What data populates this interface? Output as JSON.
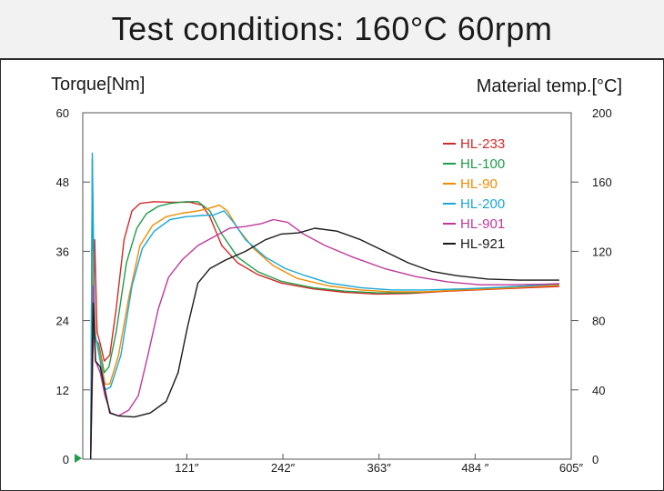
{
  "header": {
    "title": "Test conditions: 160°C 60rpm"
  },
  "chart_data": {
    "type": "line",
    "title": "Test conditions: 160°C 60rpm",
    "ylabel": "Torque[Nm]",
    "y2label": "Material temp.[°C]",
    "xlabel": "",
    "xlim": [
      -10,
      605
    ],
    "ylim": [
      0,
      60
    ],
    "y2lim": [
      0,
      200
    ],
    "x_ticks": [
      {
        "value": 121,
        "label": "121″"
      },
      {
        "value": 242,
        "label": "242″"
      },
      {
        "value": 363,
        "label": "363″"
      },
      {
        "value": 484,
        "label": "484 ″"
      },
      {
        "value": 605,
        "label": "605″"
      }
    ],
    "y_ticks": [
      0,
      12,
      24,
      36,
      48,
      60
    ],
    "y2_ticks": [
      0,
      40,
      80,
      120,
      160,
      200
    ],
    "legend_position": "top-right",
    "series": [
      {
        "name": "HL-233",
        "color": "#d62828",
        "points": [
          [
            0,
            0
          ],
          [
            3,
            20
          ],
          [
            5,
            38
          ],
          [
            8,
            22
          ],
          [
            12,
            20
          ],
          [
            17,
            17
          ],
          [
            24,
            18
          ],
          [
            32,
            26
          ],
          [
            42,
            38
          ],
          [
            52,
            43
          ],
          [
            62,
            44.3
          ],
          [
            80,
            44.6
          ],
          [
            100,
            44.5
          ],
          [
            125,
            44.5
          ],
          [
            140,
            44
          ],
          [
            150,
            42
          ],
          [
            165,
            37
          ],
          [
            185,
            34
          ],
          [
            210,
            32
          ],
          [
            240,
            30.5
          ],
          [
            280,
            29.5
          ],
          [
            320,
            28.9
          ],
          [
            360,
            28.6
          ],
          [
            400,
            28.7
          ],
          [
            450,
            29.1
          ],
          [
            500,
            29.4
          ],
          [
            550,
            29.7
          ],
          [
            590,
            29.9
          ]
        ]
      },
      {
        "name": "HL-100",
        "color": "#1f9d4a",
        "points": [
          [
            0,
            0
          ],
          [
            2,
            52
          ],
          [
            4,
            21
          ],
          [
            10,
            20
          ],
          [
            17,
            15
          ],
          [
            23,
            16
          ],
          [
            32,
            22
          ],
          [
            45,
            34
          ],
          [
            58,
            40
          ],
          [
            70,
            42.5
          ],
          [
            85,
            43.8
          ],
          [
            100,
            44.3
          ],
          [
            120,
            44.6
          ],
          [
            135,
            44.6
          ],
          [
            150,
            43
          ],
          [
            165,
            39
          ],
          [
            185,
            35
          ],
          [
            210,
            32.5
          ],
          [
            240,
            30.8
          ],
          [
            280,
            29.7
          ],
          [
            320,
            29.1
          ],
          [
            360,
            28.8
          ],
          [
            400,
            28.8
          ],
          [
            450,
            29.2
          ],
          [
            500,
            29.6
          ],
          [
            550,
            30
          ],
          [
            590,
            30.3
          ]
        ]
      },
      {
        "name": "HL-90",
        "color": "#f08c00",
        "points": [
          [
            0,
            0
          ],
          [
            3,
            36
          ],
          [
            6,
            21
          ],
          [
            12,
            18
          ],
          [
            18,
            13
          ],
          [
            24,
            13
          ],
          [
            35,
            18
          ],
          [
            48,
            28
          ],
          [
            62,
            37
          ],
          [
            78,
            40.5
          ],
          [
            95,
            42
          ],
          [
            115,
            42.6
          ],
          [
            135,
            43
          ],
          [
            150,
            43.5
          ],
          [
            162,
            44
          ],
          [
            172,
            43
          ],
          [
            185,
            40
          ],
          [
            205,
            36.5
          ],
          [
            230,
            33.5
          ],
          [
            260,
            31.3
          ],
          [
            300,
            30
          ],
          [
            340,
            29.3
          ],
          [
            380,
            29
          ],
          [
            420,
            29
          ],
          [
            470,
            29.3
          ],
          [
            520,
            29.6
          ],
          [
            560,
            29.9
          ],
          [
            590,
            30.1
          ]
        ]
      },
      {
        "name": "HL-200",
        "color": "#1aa7d8",
        "points": [
          [
            0,
            0
          ],
          [
            2,
            53
          ],
          [
            5,
            22
          ],
          [
            12,
            17
          ],
          [
            18,
            12
          ],
          [
            25,
            12.5
          ],
          [
            38,
            18
          ],
          [
            52,
            30
          ],
          [
            65,
            36.5
          ],
          [
            80,
            39.5
          ],
          [
            100,
            41.5
          ],
          [
            120,
            42
          ],
          [
            140,
            42.2
          ],
          [
            155,
            42.3
          ],
          [
            168,
            43
          ],
          [
            180,
            41
          ],
          [
            195,
            38
          ],
          [
            220,
            35
          ],
          [
            245,
            33
          ],
          [
            270,
            31.8
          ],
          [
            300,
            30.5
          ],
          [
            340,
            29.7
          ],
          [
            380,
            29.3
          ],
          [
            420,
            29.3
          ],
          [
            470,
            29.5
          ],
          [
            520,
            29.8
          ],
          [
            560,
            30.1
          ],
          [
            590,
            30.4
          ]
        ]
      },
      {
        "name": "HL-901",
        "color": "#c0399a",
        "points": [
          [
            0,
            0
          ],
          [
            3,
            30
          ],
          [
            6,
            17
          ],
          [
            12,
            15
          ],
          [
            18,
            11
          ],
          [
            25,
            8
          ],
          [
            35,
            7.5
          ],
          [
            48,
            8.5
          ],
          [
            60,
            11
          ],
          [
            72,
            18
          ],
          [
            85,
            26
          ],
          [
            98,
            31.5
          ],
          [
            115,
            34.5
          ],
          [
            135,
            37
          ],
          [
            155,
            38.5
          ],
          [
            175,
            40
          ],
          [
            195,
            40.3
          ],
          [
            215,
            40.8
          ],
          [
            230,
            41.5
          ],
          [
            248,
            41
          ],
          [
            268,
            39
          ],
          [
            295,
            37
          ],
          [
            330,
            35
          ],
          [
            370,
            33
          ],
          [
            410,
            31.6
          ],
          [
            450,
            30.7
          ],
          [
            490,
            30.2
          ],
          [
            530,
            30.2
          ],
          [
            570,
            30.3
          ],
          [
            590,
            30.4
          ]
        ]
      },
      {
        "name": "HL-921",
        "color": "#1a1a1a",
        "points": [
          [
            0,
            0
          ],
          [
            3,
            27
          ],
          [
            6,
            17
          ],
          [
            12,
            16
          ],
          [
            18,
            12
          ],
          [
            24,
            8
          ],
          [
            35,
            7.5
          ],
          [
            55,
            7.3
          ],
          [
            75,
            8
          ],
          [
            95,
            10
          ],
          [
            110,
            15
          ],
          [
            122,
            23
          ],
          [
            135,
            30.5
          ],
          [
            150,
            33
          ],
          [
            170,
            34.5
          ],
          [
            195,
            36
          ],
          [
            220,
            38
          ],
          [
            240,
            39
          ],
          [
            262,
            39.2
          ],
          [
            282,
            40
          ],
          [
            310,
            39.5
          ],
          [
            340,
            38
          ],
          [
            370,
            36
          ],
          [
            400,
            34
          ],
          [
            430,
            32.5
          ],
          [
            460,
            31.8
          ],
          [
            500,
            31.2
          ],
          [
            540,
            31
          ],
          [
            570,
            31
          ],
          [
            590,
            31
          ]
        ]
      }
    ]
  }
}
